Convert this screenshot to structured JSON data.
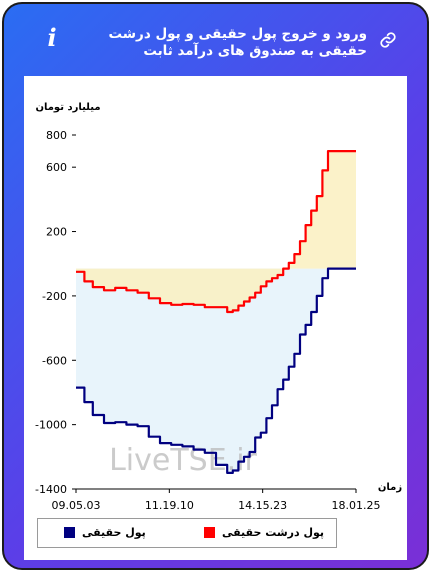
{
  "card": {
    "title": "ورود و خروج پول حقیقی و پول درشت حقیقی به صندوق های درآمد ثابت",
    "info_icon": "info-icon",
    "link_icon": "link-icon"
  },
  "watermark": "LiveTSE.ir",
  "chart_data": {
    "type": "line",
    "ylabel": "میلیارد تومان",
    "xlabel": "زمان",
    "ylim": [
      -1400,
      800
    ],
    "yticks": [
      800,
      600,
      200,
      -200,
      -600,
      -1000,
      -1400
    ],
    "xtick_labels": [
      "09.05.03",
      "11.19.10",
      "14.15.23",
      "18.01.25"
    ],
    "grid": false,
    "legend_position": "bottom",
    "series": [
      {
        "name": "پول حقیقی",
        "color": "#000080",
        "fill": "#e8f4fb",
        "x": [
          0,
          3,
          6,
          10,
          14,
          18,
          22,
          26,
          30,
          34,
          38,
          42,
          46,
          50,
          54,
          56,
          58,
          60,
          62,
          64,
          66,
          68,
          70,
          72,
          74,
          76,
          78,
          80,
          82,
          84,
          86,
          88,
          90,
          92,
          94,
          96,
          100
        ],
        "values": [
          -770,
          -860,
          -940,
          -990,
          -985,
          -1000,
          -1010,
          -1075,
          -1115,
          -1125,
          -1135,
          -1155,
          -1175,
          -1250,
          -1300,
          -1285,
          -1230,
          -1200,
          -1170,
          -1080,
          -1050,
          -960,
          -880,
          -780,
          -720,
          -640,
          -560,
          -440,
          -380,
          -300,
          -200,
          -90,
          -30,
          -30,
          -30,
          -30,
          -30
        ]
      },
      {
        "name": "پول درشت حقیقی",
        "color": "#ff0000",
        "fill": "#faf0c0",
        "x": [
          0,
          3,
          6,
          10,
          14,
          18,
          22,
          26,
          30,
          34,
          38,
          42,
          46,
          50,
          54,
          56,
          58,
          60,
          62,
          64,
          66,
          68,
          70,
          72,
          74,
          76,
          78,
          80,
          82,
          84,
          86,
          88,
          90,
          92,
          94,
          96,
          100
        ],
        "values": [
          -50,
          -110,
          -145,
          -165,
          -150,
          -165,
          -180,
          -215,
          -245,
          -255,
          -250,
          -255,
          -270,
          -270,
          -300,
          -290,
          -260,
          -235,
          -210,
          -180,
          -140,
          -110,
          -90,
          -70,
          -30,
          5,
          60,
          140,
          240,
          330,
          420,
          580,
          700,
          700,
          700,
          700,
          700
        ]
      }
    ]
  }
}
